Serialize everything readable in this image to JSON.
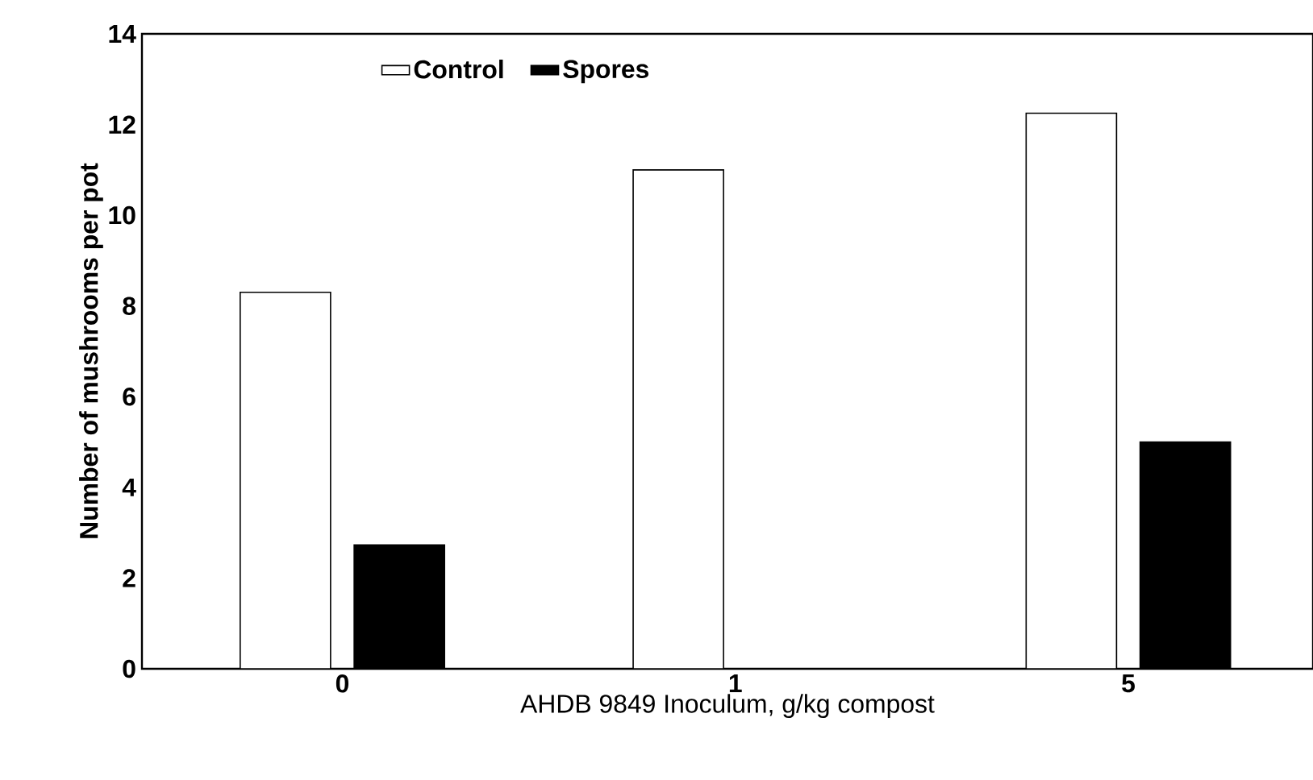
{
  "chart_data": {
    "type": "bar",
    "xlabel": "AHDB 9849 Inoculum, g/kg compost",
    "ylabel": "Number of mushrooms per pot",
    "categories": [
      "0",
      "1",
      "5"
    ],
    "series": [
      {
        "name": "Control",
        "color": "#ffffff",
        "values": [
          8.3,
          11.0,
          12.25
        ]
      },
      {
        "name": "Spores",
        "color": "#000000",
        "values": [
          2.73,
          0,
          5.0
        ]
      }
    ],
    "ylim": [
      0,
      14
    ],
    "yticks": [
      0,
      2,
      4,
      6,
      8,
      10,
      12,
      14
    ],
    "grid": false,
    "legend": "top left"
  }
}
